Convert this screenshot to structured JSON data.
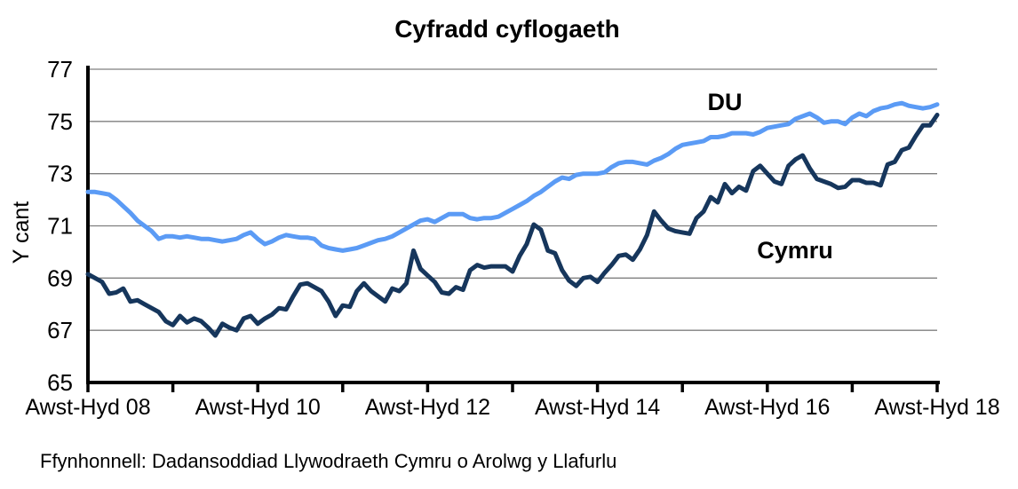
{
  "title": "Cyfradd cyflogaeth",
  "source": "Ffynhonnell: Dadansoddiad Llywodraeth Cymru o Arolwg y Llafurlu",
  "colors": {
    "du_line": "#5B9BF5",
    "cymru_line": "#16365C",
    "gridline": "#7f7f7f",
    "axis": "#000000"
  },
  "chart_data": {
    "type": "line",
    "title": "Cyfradd cyflogaeth",
    "xlabel": "",
    "ylabel": "Y cant",
    "ylim": [
      65,
      77
    ],
    "yticks": [
      65,
      67,
      69,
      71,
      73,
      75,
      77
    ],
    "grid": true,
    "x_description": "Monthly rolling 3-month periods, evenly spaced from Awst-Hyd 08 to Awst-Hyd 18; tick marks every year, labels every two years",
    "xtick_labels": [
      "Awst-Hyd 08",
      "Awst-Hyd 10",
      "Awst-Hyd 12",
      "Awst-Hyd 14",
      "Awst-Hyd 16",
      "Awst-Hyd 18"
    ],
    "legend_position": "inline-labels-on-chart",
    "series": [
      {
        "name": "DU",
        "color": "#5B9BF5",
        "values": [
          72.3,
          72.3,
          72.25,
          72.2,
          72.0,
          71.75,
          71.5,
          71.2,
          71.0,
          70.8,
          70.5,
          70.6,
          70.6,
          70.55,
          70.6,
          70.55,
          70.5,
          70.5,
          70.45,
          70.4,
          70.45,
          70.5,
          70.65,
          70.75,
          70.5,
          70.3,
          70.4,
          70.55,
          70.65,
          70.6,
          70.55,
          70.55,
          70.5,
          70.25,
          70.15,
          70.1,
          70.05,
          70.1,
          70.15,
          70.25,
          70.35,
          70.45,
          70.5,
          70.6,
          70.75,
          70.9,
          71.05,
          71.2,
          71.25,
          71.15,
          71.3,
          71.45,
          71.45,
          71.45,
          71.3,
          71.25,
          71.3,
          71.3,
          71.35,
          71.5,
          71.65,
          71.8,
          71.95,
          72.15,
          72.3,
          72.5,
          72.7,
          72.85,
          72.8,
          72.95,
          73.0,
          73.0,
          73.0,
          73.05,
          73.25,
          73.4,
          73.45,
          73.45,
          73.4,
          73.35,
          73.5,
          73.6,
          73.75,
          73.95,
          74.1,
          74.15,
          74.2,
          74.25,
          74.4,
          74.4,
          74.45,
          74.55,
          74.55,
          74.55,
          74.5,
          74.6,
          74.75,
          74.8,
          74.85,
          74.9,
          75.1,
          75.2,
          75.3,
          75.15,
          74.95,
          75.0,
          75.0,
          74.9,
          75.15,
          75.3,
          75.2,
          75.4,
          75.5,
          75.55,
          75.65,
          75.7,
          75.6,
          75.55,
          75.5,
          75.55,
          75.65
        ]
      },
      {
        "name": "Cymru",
        "color": "#16365C",
        "values": [
          69.15,
          69.0,
          68.85,
          68.4,
          68.45,
          68.6,
          68.1,
          68.15,
          68.0,
          67.85,
          67.7,
          67.35,
          67.2,
          67.55,
          67.3,
          67.45,
          67.35,
          67.1,
          66.8,
          67.25,
          67.1,
          67.0,
          67.45,
          67.55,
          67.25,
          67.45,
          67.6,
          67.85,
          67.8,
          68.3,
          68.75,
          68.8,
          68.65,
          68.5,
          68.1,
          67.55,
          67.95,
          67.9,
          68.5,
          68.8,
          68.5,
          68.3,
          68.1,
          68.6,
          68.5,
          68.8,
          70.05,
          69.35,
          69.1,
          68.85,
          68.45,
          68.4,
          68.65,
          68.55,
          69.3,
          69.5,
          69.4,
          69.45,
          69.45,
          69.45,
          69.25,
          69.85,
          70.3,
          71.05,
          70.85,
          70.05,
          69.95,
          69.3,
          68.9,
          68.7,
          69.0,
          69.05,
          68.85,
          69.2,
          69.5,
          69.85,
          69.9,
          69.7,
          70.1,
          70.65,
          71.55,
          71.2,
          70.9,
          70.8,
          70.75,
          70.7,
          71.3,
          71.55,
          72.1,
          71.9,
          72.6,
          72.25,
          72.5,
          72.35,
          73.1,
          73.3,
          73.0,
          72.7,
          72.6,
          73.3,
          73.55,
          73.7,
          73.2,
          72.8,
          72.7,
          72.6,
          72.45,
          72.5,
          72.75,
          72.75,
          72.65,
          72.65,
          72.55,
          73.35,
          73.45,
          73.9,
          74.0,
          74.45,
          74.85,
          74.85,
          75.25
        ]
      }
    ]
  }
}
